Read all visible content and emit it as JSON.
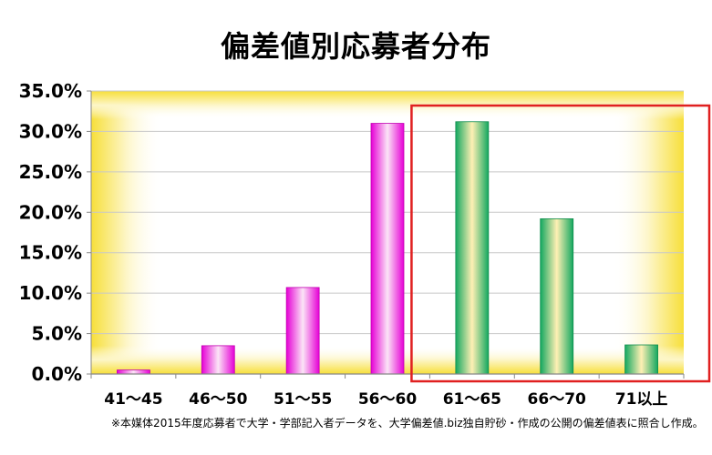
{
  "chart_data": {
    "type": "bar",
    "title": "偏差値別応募者分布",
    "categories": [
      "41～45",
      "46～50",
      "51～55",
      "56～60",
      "61～65",
      "66～70",
      "71以上"
    ],
    "values": [
      0.5,
      3.5,
      10.7,
      31.0,
      31.2,
      19.2,
      3.6
    ],
    "y_tick_labels": [
      "0.0%",
      "5.0%",
      "10.0%",
      "15.0%",
      "20.0%",
      "25.0%",
      "30.0%",
      "35.0%"
    ],
    "ylim": [
      0,
      35
    ],
    "unit": "%",
    "grid": true,
    "highlighted_categories": [
      "61～65",
      "66～70",
      "71以上"
    ],
    "colors": {
      "default_bar": "#ee00dd",
      "highlight_bar": "#1fb06a",
      "highlight_box": "#e02020",
      "plot_glow": "#f7e04a",
      "gridline": "#c8c8c8"
    },
    "footnote": "※本媒体2015年度応募者で大学・学部記入者データを、大学偏差値.biz独自貯砂・作成の公開の偏差値表に照合し作成。"
  }
}
